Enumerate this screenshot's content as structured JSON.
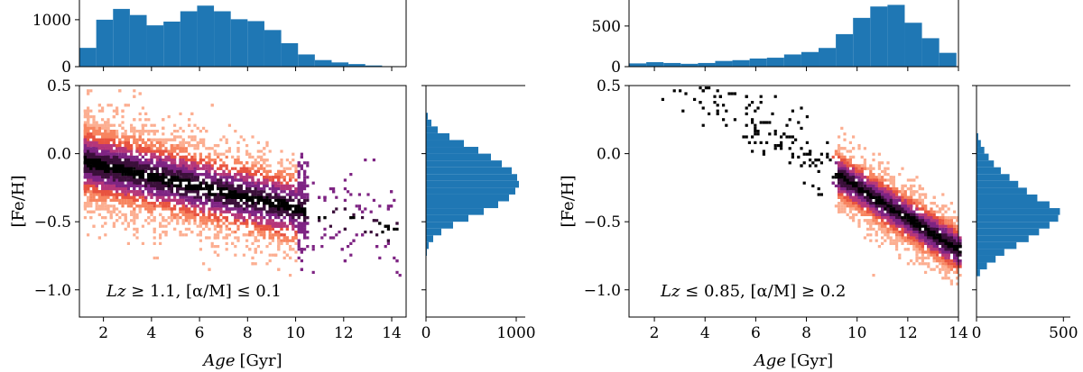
{
  "colors": {
    "hist": "#1f77b4",
    "density": [
      "#fcae91",
      "#f7845f",
      "#e8533f",
      "#b5367a",
      "#7e2483",
      "#3b0f3a",
      "#000000"
    ]
  },
  "chart_data": [
    {
      "panel": "left",
      "type": "scatter",
      "subtype": "2d-density-with-marginal-histograms",
      "xlabel_italic": "Age",
      "xlabel_unit": "[Gyr]",
      "ylabel": "[Fe/H]",
      "annotation_italic": "Lz",
      "annotation_rest": " ≥ 1.1, [α/M] ≤ 0.1",
      "xlim": [
        1,
        14.6
      ],
      "ylim": [
        -1.2,
        0.5
      ],
      "xticks": [
        2,
        4,
        6,
        8,
        10,
        12,
        14
      ],
      "yticks": [
        0.5,
        0.0,
        -0.5,
        -1.0
      ],
      "ytick_labels": [
        "0.5",
        "0.0",
        "−0.5",
        "−1.0"
      ],
      "density_trend": {
        "x": [
          1.2,
          14.0
        ],
        "y_center": [
          -0.05,
          -0.55
        ],
        "y_spread": 0.22
      },
      "top_hist": {
        "bin_edges": [
          1.0,
          1.7,
          2.4,
          3.1,
          3.8,
          4.5,
          5.2,
          5.9,
          6.6,
          7.3,
          8.0,
          8.7,
          9.4,
          10.1,
          10.8,
          11.5,
          12.2,
          12.9,
          13.6,
          14.3
        ],
        "counts": [
          400,
          1000,
          1230,
          1100,
          880,
          960,
          1180,
          1300,
          1180,
          1010,
          970,
          780,
          500,
          260,
          140,
          90,
          55,
          25,
          10
        ],
        "yticks": [
          0,
          1000
        ],
        "ylim": [
          0,
          1420
        ]
      },
      "right_hist": {
        "bin_edges": [
          0.3,
          0.25,
          0.2,
          0.15,
          0.1,
          0.05,
          0.0,
          -0.05,
          -0.1,
          -0.15,
          -0.2,
          -0.25,
          -0.3,
          -0.35,
          -0.4,
          -0.45,
          -0.5,
          -0.55,
          -0.6,
          -0.65,
          -0.7,
          -0.75
        ],
        "counts": [
          20,
          60,
          130,
          260,
          420,
          580,
          720,
          840,
          950,
          1010,
          1030,
          990,
          920,
          800,
          640,
          470,
          300,
          170,
          80,
          30,
          10
        ],
        "xticks": [
          0,
          1000
        ],
        "xlim": [
          0,
          1100
        ]
      }
    },
    {
      "panel": "right",
      "type": "scatter",
      "subtype": "2d-density-with-marginal-histograms",
      "xlabel_italic": "Age",
      "xlabel_unit": "[Gyr]",
      "ylabel": "[Fe/H]",
      "annotation_italic": "Lz",
      "annotation_rest": " ≤ 0.85, [α/M] ≥ 0.2",
      "xlim": [
        1,
        14
      ],
      "ylim": [
        -1.2,
        0.5
      ],
      "xticks": [
        2,
        4,
        6,
        8,
        10,
        12,
        14
      ],
      "yticks": [
        0.5,
        0.0,
        -0.5,
        -1.0
      ],
      "ytick_labels": [
        "0.5",
        "0.0",
        "−0.5",
        "−1.0"
      ],
      "density_trend": {
        "x": [
          9.2,
          14.0
        ],
        "y_center": [
          -0.15,
          -0.7
        ],
        "y_spread": 0.15
      },
      "top_hist": {
        "bin_edges": [
          1.0,
          1.68,
          2.36,
          3.04,
          3.72,
          4.4,
          5.08,
          5.76,
          6.44,
          7.12,
          7.8,
          8.48,
          9.16,
          9.84,
          10.52,
          11.2,
          11.88,
          12.56,
          13.24,
          13.92
        ],
        "counts": [
          40,
          55,
          45,
          35,
          45,
          70,
          80,
          100,
          110,
          150,
          180,
          230,
          400,
          600,
          740,
          760,
          540,
          350,
          170
        ],
        "yticks": [
          0,
          500
        ],
        "ylim": [
          0,
          820
        ]
      },
      "right_hist": {
        "bin_edges": [
          0.15,
          0.1,
          0.05,
          0.0,
          -0.05,
          -0.1,
          -0.15,
          -0.2,
          -0.25,
          -0.3,
          -0.35,
          -0.4,
          -0.45,
          -0.5,
          -0.55,
          -0.6,
          -0.65,
          -0.7,
          -0.75,
          -0.8,
          -0.85,
          -0.9
        ],
        "counts": [
          10,
          25,
          45,
          70,
          100,
          140,
          190,
          240,
          290,
          350,
          420,
          480,
          470,
          420,
          360,
          300,
          230,
          160,
          110,
          60,
          20
        ],
        "xticks": [
          0,
          500
        ],
        "xlim": [
          0,
          540
        ]
      }
    }
  ]
}
